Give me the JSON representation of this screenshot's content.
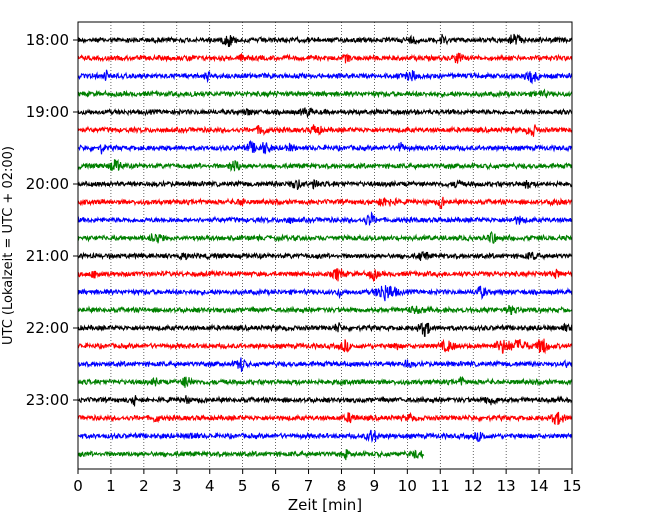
{
  "chart_data": {
    "type": "line",
    "title": "",
    "xlabel": "Zeit  [min]",
    "ylabel": "UTC (Lokalzeit = UTC + 02:00)",
    "xlim": [
      0,
      15
    ],
    "x_ticks": [
      0,
      1,
      2,
      3,
      4,
      5,
      6,
      7,
      8,
      9,
      10,
      11,
      12,
      13,
      14,
      15
    ],
    "y_tick_labels": [
      "18:00",
      "19:00",
      "20:00",
      "21:00",
      "22:00",
      "23:00"
    ],
    "trace_interval_minutes": 15,
    "first_trace": "18:00",
    "trace_colors": [
      "#000000",
      "#ff0000",
      "#0000ff",
      "#008000"
    ],
    "grid": "vertical dotted at each minute",
    "traces": [
      {
        "start": "18:00",
        "color": "#000000",
        "end_min": 15
      },
      {
        "start": "18:15",
        "color": "#ff0000",
        "end_min": 15
      },
      {
        "start": "18:30",
        "color": "#0000ff",
        "end_min": 15
      },
      {
        "start": "18:45",
        "color": "#008000",
        "end_min": 15
      },
      {
        "start": "19:00",
        "color": "#000000",
        "end_min": 15
      },
      {
        "start": "19:15",
        "color": "#ff0000",
        "end_min": 15
      },
      {
        "start": "19:30",
        "color": "#0000ff",
        "end_min": 15
      },
      {
        "start": "19:45",
        "color": "#008000",
        "end_min": 15
      },
      {
        "start": "20:00",
        "color": "#000000",
        "end_min": 15
      },
      {
        "start": "20:15",
        "color": "#ff0000",
        "end_min": 15
      },
      {
        "start": "20:30",
        "color": "#0000ff",
        "end_min": 15
      },
      {
        "start": "20:45",
        "color": "#008000",
        "end_min": 15
      },
      {
        "start": "21:00",
        "color": "#000000",
        "end_min": 15
      },
      {
        "start": "21:15",
        "color": "#ff0000",
        "end_min": 15
      },
      {
        "start": "21:30",
        "color": "#0000ff",
        "end_min": 15
      },
      {
        "start": "21:45",
        "color": "#008000",
        "end_min": 15
      },
      {
        "start": "22:00",
        "color": "#000000",
        "end_min": 15
      },
      {
        "start": "22:15",
        "color": "#ff0000",
        "end_min": 15
      },
      {
        "start": "22:30",
        "color": "#0000ff",
        "end_min": 15
      },
      {
        "start": "22:45",
        "color": "#008000",
        "end_min": 15
      },
      {
        "start": "23:00",
        "color": "#000000",
        "end_min": 15
      },
      {
        "start": "23:15",
        "color": "#ff0000",
        "end_min": 15
      },
      {
        "start": "23:30",
        "color": "#0000ff",
        "end_min": 15
      },
      {
        "start": "23:45",
        "color": "#008000",
        "end_min": 10.5
      }
    ]
  }
}
